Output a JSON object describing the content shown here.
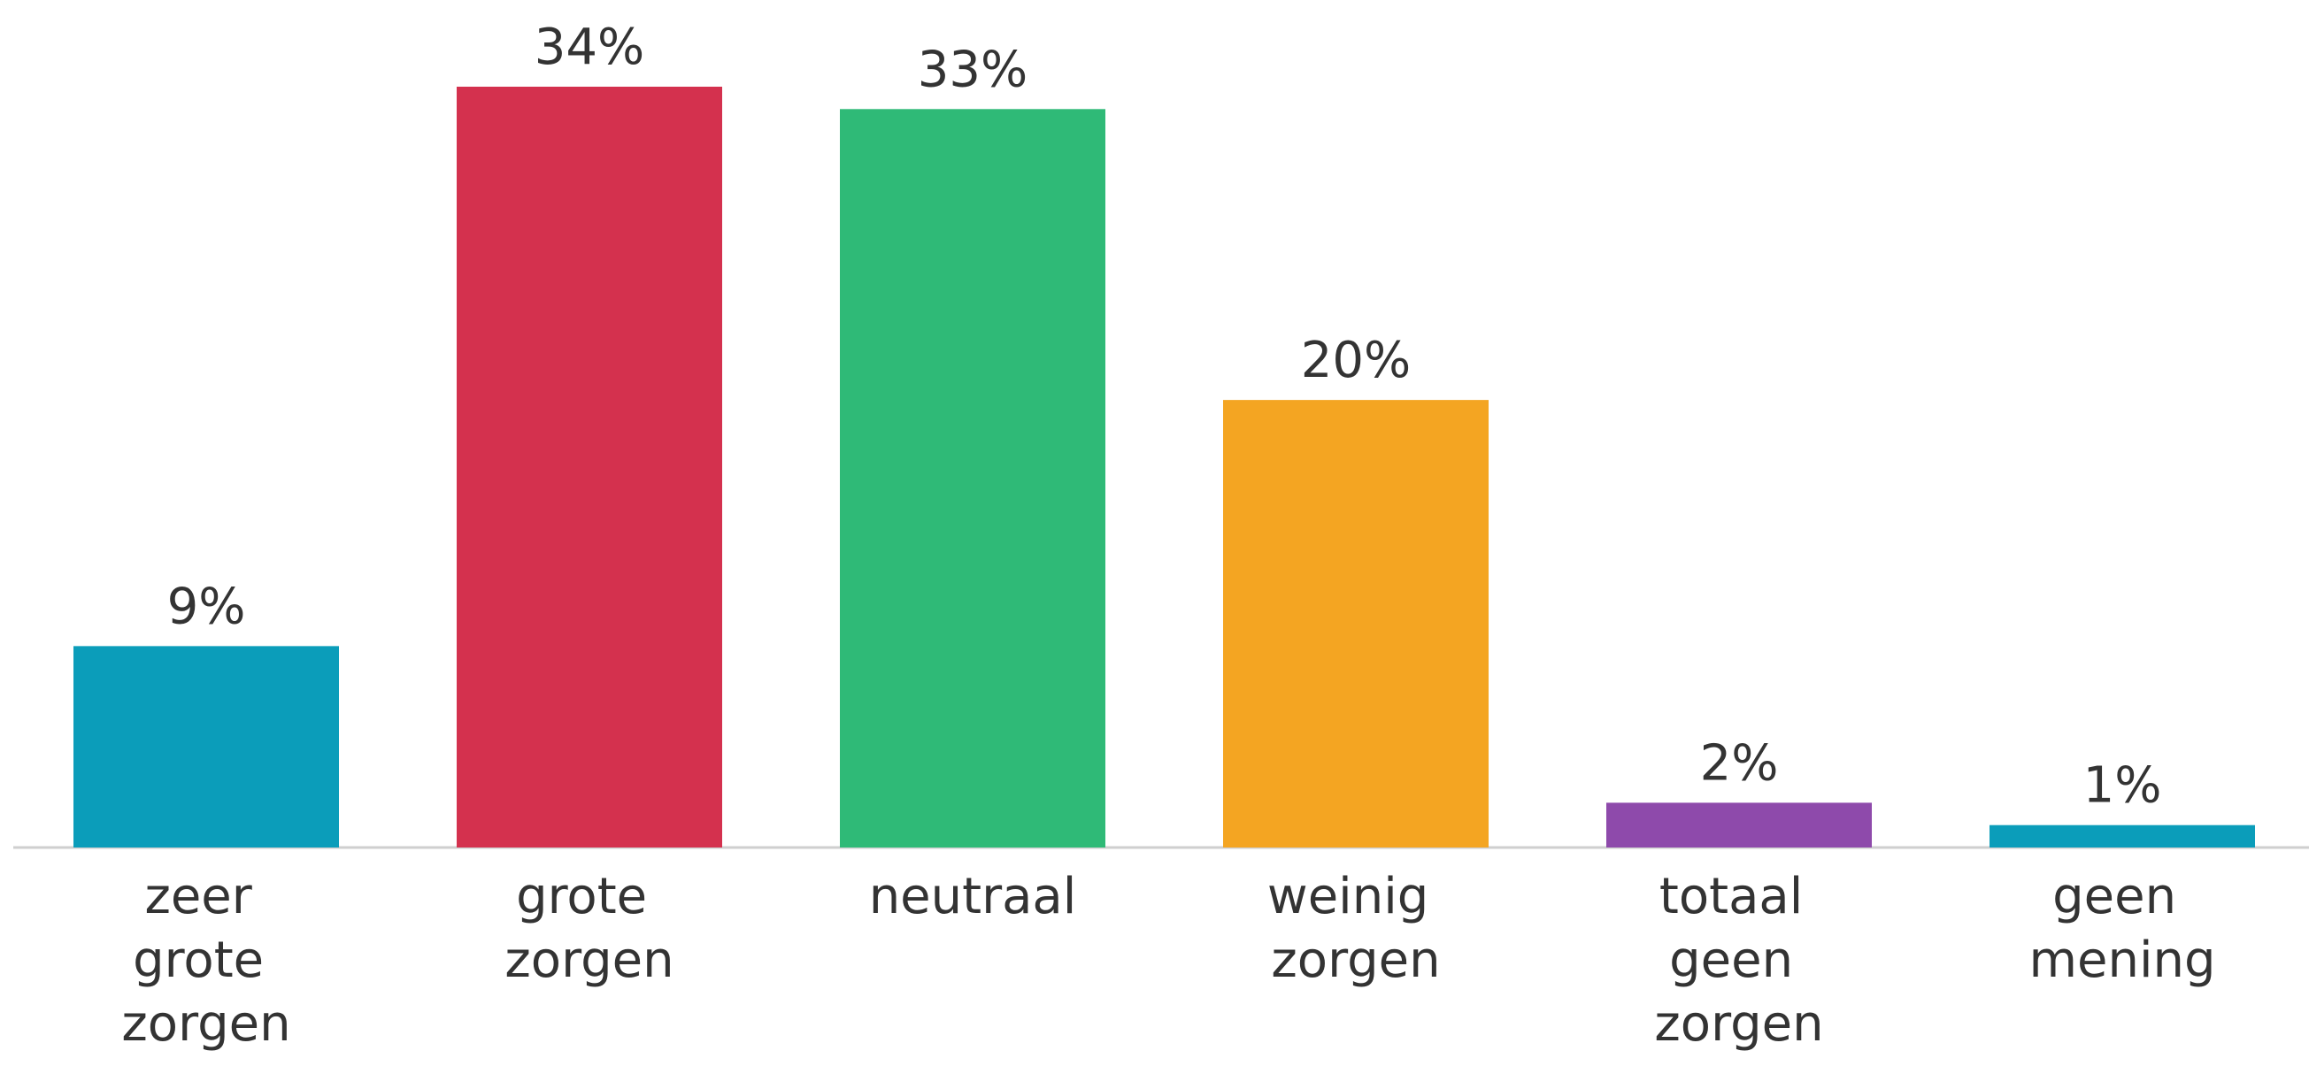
{
  "chart_data": {
    "type": "bar",
    "categories": [
      "zeer grote zorgen",
      "grote zorgen",
      "neutraal",
      "weinig zorgen",
      "totaal geen zorgen",
      "geen mening"
    ],
    "values": [
      9,
      34,
      33,
      20,
      2,
      1
    ],
    "value_labels": [
      "9%",
      "34%",
      "33%",
      "20%",
      "2%",
      "1%"
    ],
    "colors": [
      "#0b9dba",
      "#d4314e",
      "#2fba77",
      "#f4a522",
      "#8e4aab",
      "#0b9dba"
    ],
    "grid": false
  }
}
